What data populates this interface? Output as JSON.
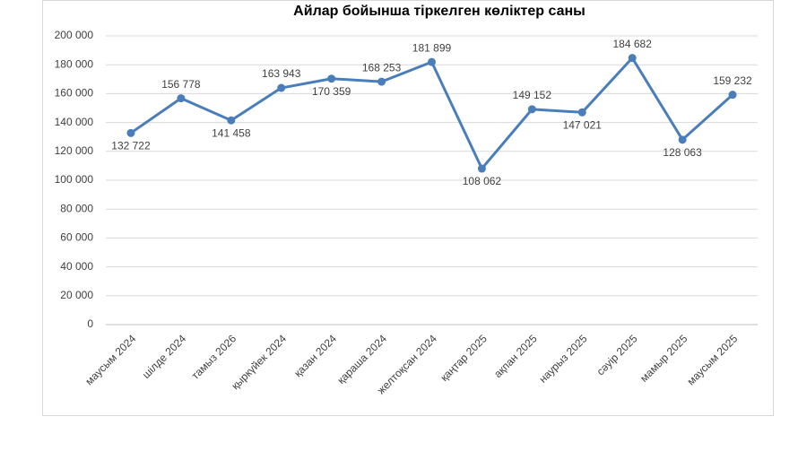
{
  "chart_data": {
    "type": "line",
    "title": "Айлар бойынша тіркелген көліктер саны",
    "categories": [
      "маусым 2024",
      "шілде 2024",
      "тамыз 2026",
      "қыркүйек 2024",
      "қазан 2024",
      "қараша 2024",
      "желтоқсан 2024",
      "қаңтар 2025",
      "ақпан 2025",
      "наурыз 2025",
      "сәуір 2025",
      "мамыр 2025",
      "маусым 2025"
    ],
    "values": [
      132722,
      156778,
      141458,
      163943,
      170359,
      168253,
      181899,
      108062,
      149152,
      147021,
      184682,
      128063,
      159232
    ],
    "value_labels": [
      "132 722",
      "156 778",
      "141 458",
      "163 943",
      "170 359",
      "168 253",
      "181 899",
      "108 062",
      "149 152",
      "147 021",
      "184 682",
      "128 063",
      "159 232"
    ],
    "color": "#4a7ebb",
    "ylim": [
      0,
      200000
    ],
    "yticks": [
      0,
      {
        "value": 20000,
        "label": "20 000"
      },
      {
        "value": 40000,
        "label": "40 000"
      },
      {
        "value": 60000,
        "label": "60 000"
      },
      {
        "value": 80000,
        "label": "80 000"
      },
      {
        "value": 100000,
        "label": "100 000"
      },
      {
        "value": 120000,
        "label": "120 000"
      },
      {
        "value": 140000,
        "label": "140 000"
      },
      {
        "value": 160000,
        "label": "160 000"
      },
      {
        "value": 180000,
        "label": "180 000"
      },
      {
        "value": 200000,
        "label": "200 000"
      }
    ],
    "grid": true
  }
}
